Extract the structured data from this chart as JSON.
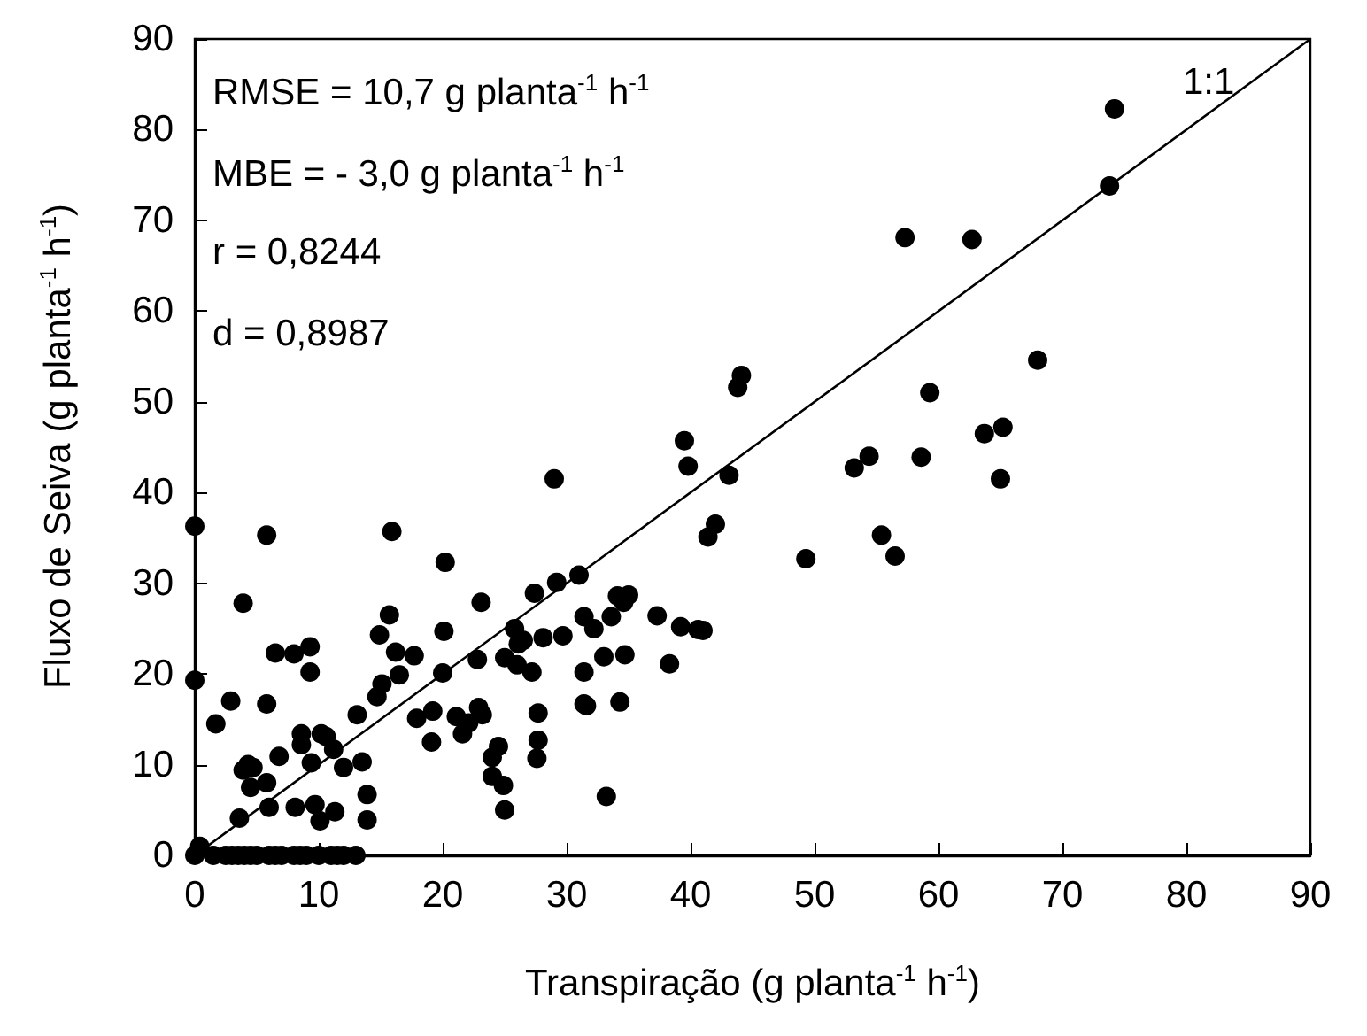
{
  "chart_data": {
    "type": "scatter",
    "xlabel": "Transpiração (g planta$^{-1}$ h$^{-1}$)",
    "ylabel": "Fluxo de Seiva (g planta$^{-1}$ h$^{-1}$)",
    "xlim": [
      0,
      90
    ],
    "ylim": [
      0,
      90
    ],
    "xticks": [
      0,
      10,
      20,
      30,
      40,
      50,
      60,
      70,
      80,
      90
    ],
    "yticks": [
      0,
      10,
      20,
      30,
      40,
      50,
      60,
      70,
      80,
      90
    ],
    "grid": false,
    "marker": "circle",
    "annotations": [
      "RMSE = 10,7 g planta$^{-1}$ h$^{-1}$",
      "MBE = - 3,0 g planta$^{-1}$ h$^{-1}$",
      "r = 0,8244",
      "d = 0,8987",
      "1:1"
    ],
    "series": [
      {
        "color": "#000000",
        "x": [
          0,
          0,
          5.8,
          3.9,
          1.7,
          2.9,
          5.8,
          6.5,
          8,
          9.3,
          9.3,
          6.8,
          3.9,
          4.3,
          4.7,
          4.5,
          6,
          5.8,
          3.6,
          8.6,
          8.6,
          10.2,
          10.6,
          11.2,
          9.4,
          8.1,
          9.7,
          10.1,
          11.3,
          12,
          13.1,
          13.5,
          13.9,
          13.9,
          14.7,
          14.9,
          15.1,
          15.7,
          16.2,
          15.9,
          16.5,
          17.7,
          17.9,
          19.2,
          19.1,
          20,
          20.1,
          20.2,
          21.1,
          21.6,
          22.1,
          22.8,
          22.9,
          23.2,
          23.1,
          24,
          24,
          24.5,
          24.9,
          25,
          25,
          25.8,
          26,
          26.1,
          26.5,
          27.2,
          27.4,
          27.7,
          27.7,
          27.6,
          28.1,
          29,
          29.2,
          29.7,
          31,
          31.4,
          31.4,
          31.4,
          31.6,
          32.2,
          33,
          33.2,
          33.6,
          34.1,
          34.6,
          35,
          34.7,
          34.3,
          37.3,
          38.3,
          39.2,
          39.5,
          39.8,
          40.6,
          41,
          41.4,
          42,
          43.1,
          43.8,
          44.1,
          49.3,
          53.2,
          54.4,
          55.4,
          56.5,
          57.3,
          58.6,
          59.3,
          62.7,
          63.7,
          65,
          65.2,
          68,
          73.8,
          74.2,
          0,
          1.5,
          2.5,
          3,
          3.5,
          4,
          4.5,
          5,
          6,
          6.5,
          7,
          8,
          8.5,
          9,
          10,
          11,
          11.5,
          12,
          13,
          0.4
        ],
        "values": [
          36.3,
          19.3,
          35.3,
          27.8,
          14.5,
          17,
          16.7,
          22.3,
          22.2,
          23,
          20.2,
          10.9,
          9.4,
          10,
          9.7,
          7.5,
          5.3,
          8,
          4.1,
          13.4,
          12.2,
          13.4,
          13.1,
          11.7,
          10.2,
          5.3,
          5.6,
          3.8,
          4.8,
          9.7,
          15.5,
          10.3,
          6.7,
          3.9,
          17.5,
          24.3,
          18.9,
          26.5,
          22.4,
          35.7,
          19.9,
          22,
          15.1,
          15.9,
          12.5,
          20.1,
          24.7,
          32.3,
          15.3,
          13.4,
          14.6,
          21.6,
          16.3,
          15.5,
          27.9,
          10.8,
          8.7,
          12,
          7.7,
          5,
          21.8,
          25,
          21,
          23.3,
          23.7,
          20.2,
          28.9,
          15.7,
          12.7,
          10.7,
          24,
          41.5,
          30.1,
          24.2,
          30.9,
          26.3,
          20.2,
          16.7,
          16.5,
          25,
          21.9,
          6.5,
          26.3,
          28.6,
          27.9,
          28.7,
          22.1,
          16.9,
          26.4,
          21.1,
          25.2,
          45.7,
          42.9,
          24.9,
          24.8,
          35.1,
          36.5,
          41.9,
          51.6,
          52.9,
          32.7,
          42.7,
          44,
          35.3,
          33,
          68.1,
          43.9,
          51,
          67.9,
          46.5,
          41.5,
          47.2,
          54.6,
          73.8,
          82.3,
          0,
          0,
          0,
          0,
          0,
          0,
          0,
          0,
          0,
          0,
          0,
          0,
          0,
          0,
          0,
          0,
          0,
          0,
          0,
          1
        ]
      },
      {
        "type": "line",
        "color": "#000000",
        "marker": "none",
        "x": [
          0,
          90
        ],
        "values": [
          0,
          90
        ]
      }
    ]
  }
}
